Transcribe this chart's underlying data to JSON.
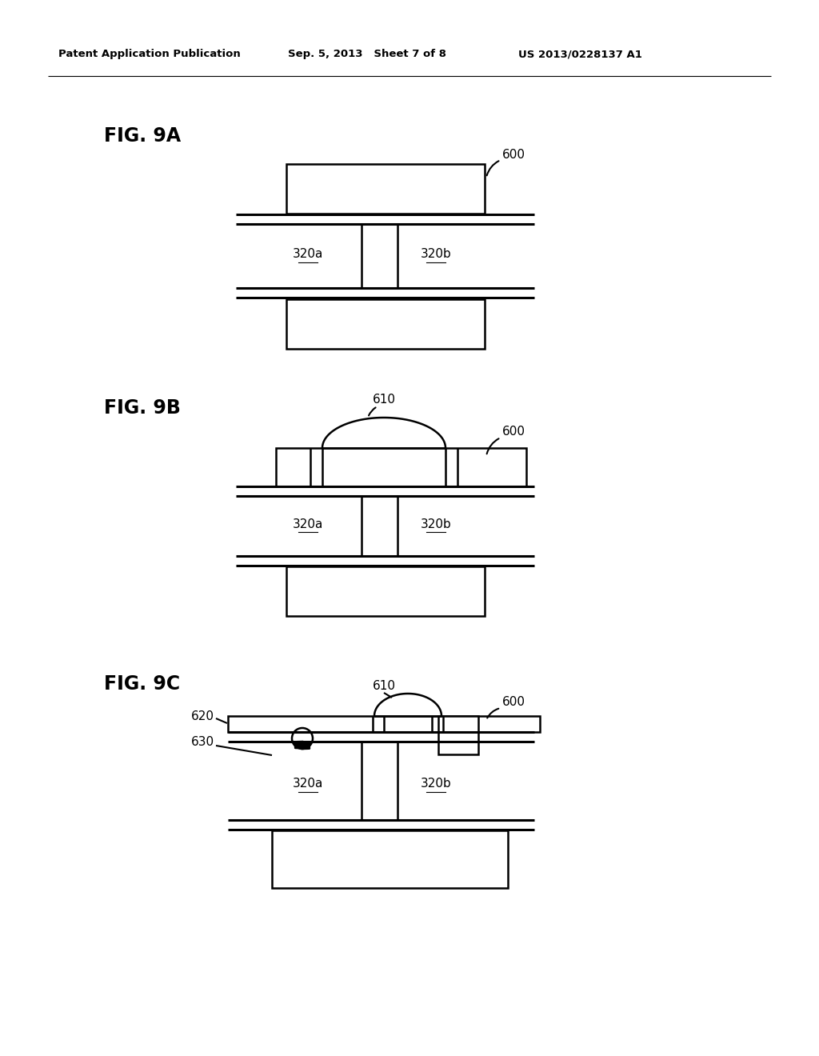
{
  "bg_color": "#ffffff",
  "line_color": "#000000",
  "header_left": "Patent Application Publication",
  "header_mid": "Sep. 5, 2013   Sheet 7 of 8",
  "header_right": "US 2013/0228137 A1",
  "fig9a_label": "FIG. 9A",
  "fig9b_label": "FIG. 9B",
  "fig9c_label": "FIG. 9C",
  "label_600": "600",
  "label_610": "610",
  "label_620": "620",
  "label_630": "630",
  "label_320a": "320a",
  "label_320b": "320b"
}
